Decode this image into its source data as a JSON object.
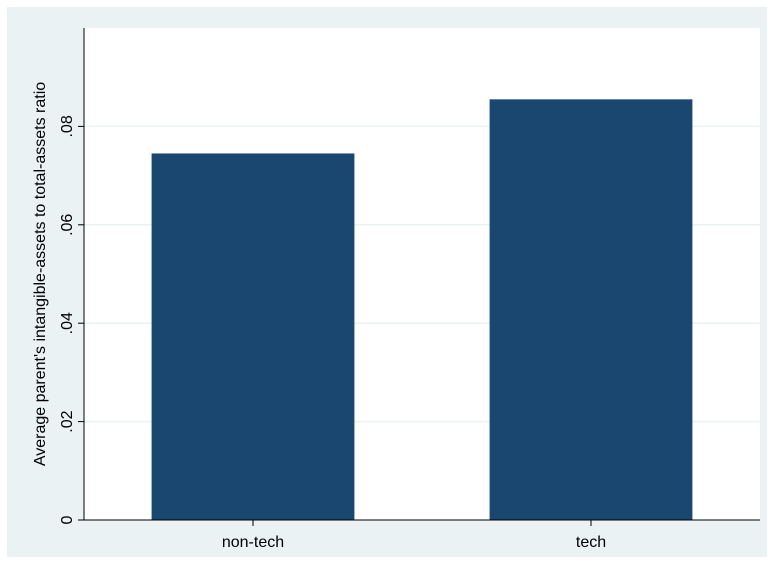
{
  "chart_data": {
    "type": "bar",
    "categories": [
      "non-tech",
      "tech"
    ],
    "values": [
      0.0745,
      0.0855
    ],
    "title": "",
    "xlabel": "",
    "ylabel": "Average parent's intangible-assets to total-assets ratio",
    "ylim": [
      0,
      0.1
    ],
    "yticks": [
      0,
      0.02,
      0.04,
      0.06,
      0.08
    ],
    "ytick_labels": [
      "0",
      ".02",
      ".04",
      ".06",
      ".08"
    ],
    "grid": true,
    "legend": "none",
    "colors": {
      "bar": "#1a476f",
      "outer_background": "#eaf2f3",
      "plot_background": "#ffffff",
      "grid": "#eaf2f3",
      "axis": "#000000"
    }
  }
}
